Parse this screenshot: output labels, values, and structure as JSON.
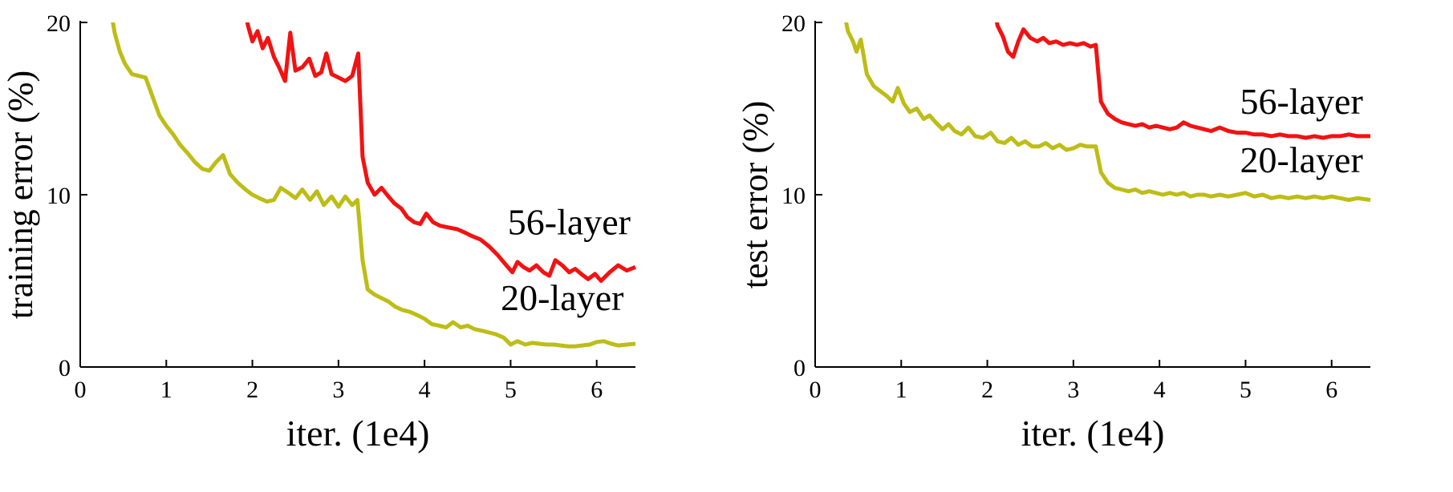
{
  "figure": {
    "background": "#ffffff",
    "axis_color": "#000000"
  },
  "colors": {
    "red_56_layer": "#f21212",
    "olive_20_layer": "#bdbd17"
  },
  "chart_data": [
    {
      "type": "line",
      "title": "",
      "xlabel": "iter. (1e4)",
      "ylabel": "training error (%)",
      "xlim": [
        0,
        6.45
      ],
      "ylim": [
        0,
        20
      ],
      "xticks": [
        0,
        1,
        2,
        3,
        4,
        5,
        6
      ],
      "yticks": [
        0,
        10,
        20
      ],
      "grid": false,
      "legend_position": "inline-annotations",
      "annotations": [
        {
          "text": "56-layer",
          "x": 5.68,
          "y": 7.7
        },
        {
          "text": "20-layer",
          "x": 5.6,
          "y": 3.3
        }
      ],
      "series": [
        {
          "name": "20-layer",
          "color": "#bdbd17",
          "points": [
            [
              0.33,
              21.5
            ],
            [
              0.4,
              19.4
            ],
            [
              0.46,
              18.3
            ],
            [
              0.52,
              17.6
            ],
            [
              0.6,
              17.0
            ],
            [
              0.68,
              16.9
            ],
            [
              0.76,
              16.8
            ],
            [
              0.84,
              15.7
            ],
            [
              0.92,
              14.6
            ],
            [
              1.0,
              14.0
            ],
            [
              1.08,
              13.5
            ],
            [
              1.16,
              12.9
            ],
            [
              1.25,
              12.4
            ],
            [
              1.33,
              11.9
            ],
            [
              1.42,
              11.5
            ],
            [
              1.5,
              11.4
            ],
            [
              1.58,
              11.9
            ],
            [
              1.66,
              12.3
            ],
            [
              1.74,
              11.2
            ],
            [
              1.83,
              10.7
            ],
            [
              1.92,
              10.3
            ],
            [
              2.0,
              10.0
            ],
            [
              2.08,
              9.8
            ],
            [
              2.17,
              9.6
            ],
            [
              2.25,
              9.7
            ],
            [
              2.33,
              10.4
            ],
            [
              2.42,
              10.1
            ],
            [
              2.5,
              9.8
            ],
            [
              2.58,
              10.3
            ],
            [
              2.67,
              9.7
            ],
            [
              2.75,
              10.2
            ],
            [
              2.83,
              9.4
            ],
            [
              2.92,
              9.9
            ],
            [
              3.0,
              9.3
            ],
            [
              3.08,
              9.9
            ],
            [
              3.16,
              9.4
            ],
            [
              3.22,
              9.7
            ],
            [
              3.28,
              6.2
            ],
            [
              3.34,
              4.5
            ],
            [
              3.42,
              4.2
            ],
            [
              3.5,
              4.0
            ],
            [
              3.58,
              3.8
            ],
            [
              3.66,
              3.5
            ],
            [
              3.75,
              3.3
            ],
            [
              3.83,
              3.2
            ],
            [
              3.92,
              3.0
            ],
            [
              4.0,
              2.8
            ],
            [
              4.08,
              2.5
            ],
            [
              4.17,
              2.4
            ],
            [
              4.25,
              2.3
            ],
            [
              4.33,
              2.6
            ],
            [
              4.42,
              2.3
            ],
            [
              4.5,
              2.4
            ],
            [
              4.58,
              2.2
            ],
            [
              4.67,
              2.1
            ],
            [
              4.75,
              2.0
            ],
            [
              4.83,
              1.9
            ],
            [
              4.92,
              1.7
            ],
            [
              5.0,
              1.3
            ],
            [
              5.08,
              1.5
            ],
            [
              5.17,
              1.3
            ],
            [
              5.25,
              1.4
            ],
            [
              5.33,
              1.35
            ],
            [
              5.42,
              1.3
            ],
            [
              5.5,
              1.3
            ],
            [
              5.58,
              1.25
            ],
            [
              5.67,
              1.2
            ],
            [
              5.75,
              1.2
            ],
            [
              5.83,
              1.25
            ],
            [
              5.92,
              1.3
            ],
            [
              6.0,
              1.45
            ],
            [
              6.08,
              1.5
            ],
            [
              6.17,
              1.35
            ],
            [
              6.25,
              1.25
            ],
            [
              6.35,
              1.3
            ],
            [
              6.45,
              1.35
            ]
          ]
        },
        {
          "name": "56-layer",
          "color": "#f21212",
          "points": [
            [
              1.88,
              21.5
            ],
            [
              1.95,
              19.8
            ],
            [
              2.0,
              18.9
            ],
            [
              2.06,
              19.5
            ],
            [
              2.12,
              18.5
            ],
            [
              2.18,
              19.1
            ],
            [
              2.25,
              18.0
            ],
            [
              2.31,
              17.4
            ],
            [
              2.38,
              16.6
            ],
            [
              2.44,
              19.4
            ],
            [
              2.5,
              17.2
            ],
            [
              2.58,
              17.4
            ],
            [
              2.66,
              17.9
            ],
            [
              2.73,
              16.9
            ],
            [
              2.8,
              17.1
            ],
            [
              2.86,
              18.2
            ],
            [
              2.92,
              17.0
            ],
            [
              3.0,
              16.8
            ],
            [
              3.08,
              16.6
            ],
            [
              3.16,
              16.9
            ],
            [
              3.23,
              18.2
            ],
            [
              3.28,
              12.2
            ],
            [
              3.34,
              10.7
            ],
            [
              3.42,
              10.0
            ],
            [
              3.5,
              10.4
            ],
            [
              3.58,
              9.9
            ],
            [
              3.65,
              9.5
            ],
            [
              3.73,
              9.2
            ],
            [
              3.8,
              8.7
            ],
            [
              3.88,
              8.4
            ],
            [
              3.95,
              8.3
            ],
            [
              4.02,
              8.9
            ],
            [
              4.1,
              8.4
            ],
            [
              4.18,
              8.2
            ],
            [
              4.28,
              8.1
            ],
            [
              4.38,
              8.0
            ],
            [
              4.47,
              7.8
            ],
            [
              4.55,
              7.6
            ],
            [
              4.65,
              7.4
            ],
            [
              4.75,
              7.0
            ],
            [
              4.85,
              6.5
            ],
            [
              4.95,
              5.9
            ],
            [
              5.02,
              5.5
            ],
            [
              5.08,
              6.1
            ],
            [
              5.15,
              5.8
            ],
            [
              5.22,
              5.6
            ],
            [
              5.3,
              5.9
            ],
            [
              5.38,
              5.5
            ],
            [
              5.45,
              5.3
            ],
            [
              5.52,
              6.2
            ],
            [
              5.6,
              5.9
            ],
            [
              5.68,
              5.5
            ],
            [
              5.75,
              5.7
            ],
            [
              5.82,
              5.4
            ],
            [
              5.9,
              5.1
            ],
            [
              5.98,
              5.4
            ],
            [
              6.05,
              5.0
            ],
            [
              6.15,
              5.5
            ],
            [
              6.25,
              5.9
            ],
            [
              6.35,
              5.6
            ],
            [
              6.45,
              5.8
            ]
          ]
        }
      ]
    },
    {
      "type": "line",
      "title": "",
      "xlabel": "iter. (1e4)",
      "ylabel": "test error (%)",
      "xlim": [
        0,
        6.45
      ],
      "ylim": [
        0,
        20
      ],
      "xticks": [
        0,
        1,
        2,
        3,
        4,
        5,
        6
      ],
      "yticks": [
        0,
        10,
        20
      ],
      "grid": false,
      "legend_position": "inline-annotations",
      "annotations": [
        {
          "text": "56-layer",
          "x": 5.65,
          "y": 14.7
        },
        {
          "text": "20-layer",
          "x": 5.65,
          "y": 11.3
        }
      ],
      "series": [
        {
          "name": "20-layer",
          "color": "#bdbd17",
          "points": [
            [
              0.3,
              21.5
            ],
            [
              0.38,
              19.5
            ],
            [
              0.44,
              18.9
            ],
            [
              0.48,
              18.3
            ],
            [
              0.53,
              19.0
            ],
            [
              0.6,
              17.0
            ],
            [
              0.68,
              16.3
            ],
            [
              0.76,
              16.0
            ],
            [
              0.84,
              15.7
            ],
            [
              0.9,
              15.4
            ],
            [
              0.96,
              16.2
            ],
            [
              1.03,
              15.3
            ],
            [
              1.1,
              14.8
            ],
            [
              1.18,
              15.0
            ],
            [
              1.26,
              14.4
            ],
            [
              1.33,
              14.6
            ],
            [
              1.4,
              14.2
            ],
            [
              1.48,
              13.8
            ],
            [
              1.55,
              14.1
            ],
            [
              1.62,
              13.7
            ],
            [
              1.7,
              13.5
            ],
            [
              1.78,
              13.9
            ],
            [
              1.86,
              13.4
            ],
            [
              1.95,
              13.3
            ],
            [
              2.04,
              13.6
            ],
            [
              2.12,
              13.1
            ],
            [
              2.2,
              13.0
            ],
            [
              2.28,
              13.3
            ],
            [
              2.36,
              12.9
            ],
            [
              2.44,
              13.1
            ],
            [
              2.52,
              12.8
            ],
            [
              2.6,
              12.8
            ],
            [
              2.68,
              13.0
            ],
            [
              2.76,
              12.7
            ],
            [
              2.84,
              12.9
            ],
            [
              2.92,
              12.6
            ],
            [
              3.0,
              12.7
            ],
            [
              3.08,
              12.9
            ],
            [
              3.16,
              12.8
            ],
            [
              3.26,
              12.8
            ],
            [
              3.32,
              11.3
            ],
            [
              3.4,
              10.7
            ],
            [
              3.48,
              10.4
            ],
            [
              3.56,
              10.3
            ],
            [
              3.64,
              10.2
            ],
            [
              3.72,
              10.3
            ],
            [
              3.8,
              10.1
            ],
            [
              3.88,
              10.2
            ],
            [
              3.96,
              10.1
            ],
            [
              4.04,
              10.0
            ],
            [
              4.12,
              10.1
            ],
            [
              4.2,
              10.0
            ],
            [
              4.28,
              10.1
            ],
            [
              4.36,
              9.9
            ],
            [
              4.44,
              10.0
            ],
            [
              4.52,
              10.0
            ],
            [
              4.6,
              9.9
            ],
            [
              4.7,
              10.0
            ],
            [
              4.8,
              9.9
            ],
            [
              4.9,
              10.0
            ],
            [
              5.0,
              10.1
            ],
            [
              5.1,
              9.9
            ],
            [
              5.2,
              10.0
            ],
            [
              5.3,
              9.8
            ],
            [
              5.4,
              9.9
            ],
            [
              5.5,
              9.8
            ],
            [
              5.6,
              9.9
            ],
            [
              5.7,
              9.8
            ],
            [
              5.8,
              9.9
            ],
            [
              5.9,
              9.8
            ],
            [
              6.0,
              9.9
            ],
            [
              6.1,
              9.8
            ],
            [
              6.2,
              9.7
            ],
            [
              6.3,
              9.8
            ],
            [
              6.45,
              9.7
            ]
          ]
        },
        {
          "name": "56-layer",
          "color": "#f21212",
          "points": [
            [
              2.05,
              21.5
            ],
            [
              2.12,
              19.8
            ],
            [
              2.18,
              19.2
            ],
            [
              2.24,
              18.3
            ],
            [
              2.3,
              18.0
            ],
            [
              2.36,
              18.9
            ],
            [
              2.42,
              19.6
            ],
            [
              2.5,
              19.1
            ],
            [
              2.58,
              18.9
            ],
            [
              2.65,
              19.1
            ],
            [
              2.72,
              18.8
            ],
            [
              2.8,
              18.9
            ],
            [
              2.88,
              18.7
            ],
            [
              2.96,
              18.8
            ],
            [
              3.04,
              18.7
            ],
            [
              3.12,
              18.8
            ],
            [
              3.2,
              18.6
            ],
            [
              3.26,
              18.7
            ],
            [
              3.32,
              15.4
            ],
            [
              3.4,
              14.7
            ],
            [
              3.48,
              14.4
            ],
            [
              3.56,
              14.2
            ],
            [
              3.64,
              14.1
            ],
            [
              3.72,
              14.0
            ],
            [
              3.8,
              14.1
            ],
            [
              3.88,
              13.9
            ],
            [
              3.96,
              14.0
            ],
            [
              4.04,
              13.9
            ],
            [
              4.12,
              13.8
            ],
            [
              4.2,
              13.9
            ],
            [
              4.28,
              14.2
            ],
            [
              4.36,
              14.0
            ],
            [
              4.44,
              13.9
            ],
            [
              4.52,
              13.8
            ],
            [
              4.6,
              13.7
            ],
            [
              4.7,
              13.9
            ],
            [
              4.8,
              13.7
            ],
            [
              4.9,
              13.6
            ],
            [
              5.0,
              13.6
            ],
            [
              5.1,
              13.5
            ],
            [
              5.2,
              13.5
            ],
            [
              5.3,
              13.4
            ],
            [
              5.4,
              13.5
            ],
            [
              5.5,
              13.4
            ],
            [
              5.6,
              13.4
            ],
            [
              5.7,
              13.3
            ],
            [
              5.8,
              13.4
            ],
            [
              5.9,
              13.3
            ],
            [
              6.0,
              13.4
            ],
            [
              6.1,
              13.4
            ],
            [
              6.2,
              13.5
            ],
            [
              6.3,
              13.4
            ],
            [
              6.45,
              13.4
            ]
          ]
        }
      ]
    }
  ]
}
